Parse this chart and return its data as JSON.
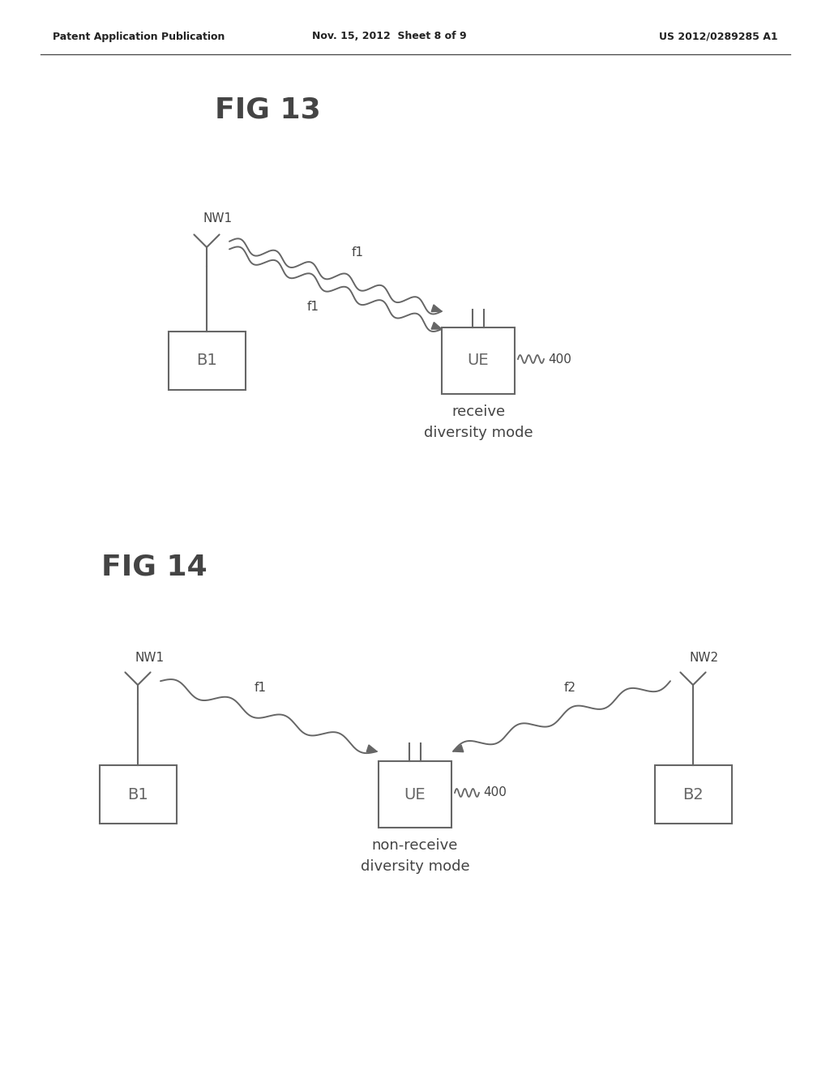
{
  "background_color": "#ffffff",
  "header_left": "Patent Application Publication",
  "header_mid": "Nov. 15, 2012  Sheet 8 of 9",
  "header_right": "US 2012/0289285 A1",
  "fig13_title": "FIG 13",
  "fig14_title": "FIG 14",
  "fig13_label_mode": "receive\ndiversity mode",
  "fig14_label_mode": "non-receive\ndiversity mode",
  "label_B1": "B1",
  "label_B2": "B2",
  "label_UE": "UE",
  "label_NW1": "NW1",
  "label_NW2": "NW2",
  "label_400": "400",
  "label_f1": "f1",
  "label_f2": "f2",
  "line_color": "#666666",
  "text_color": "#444444"
}
